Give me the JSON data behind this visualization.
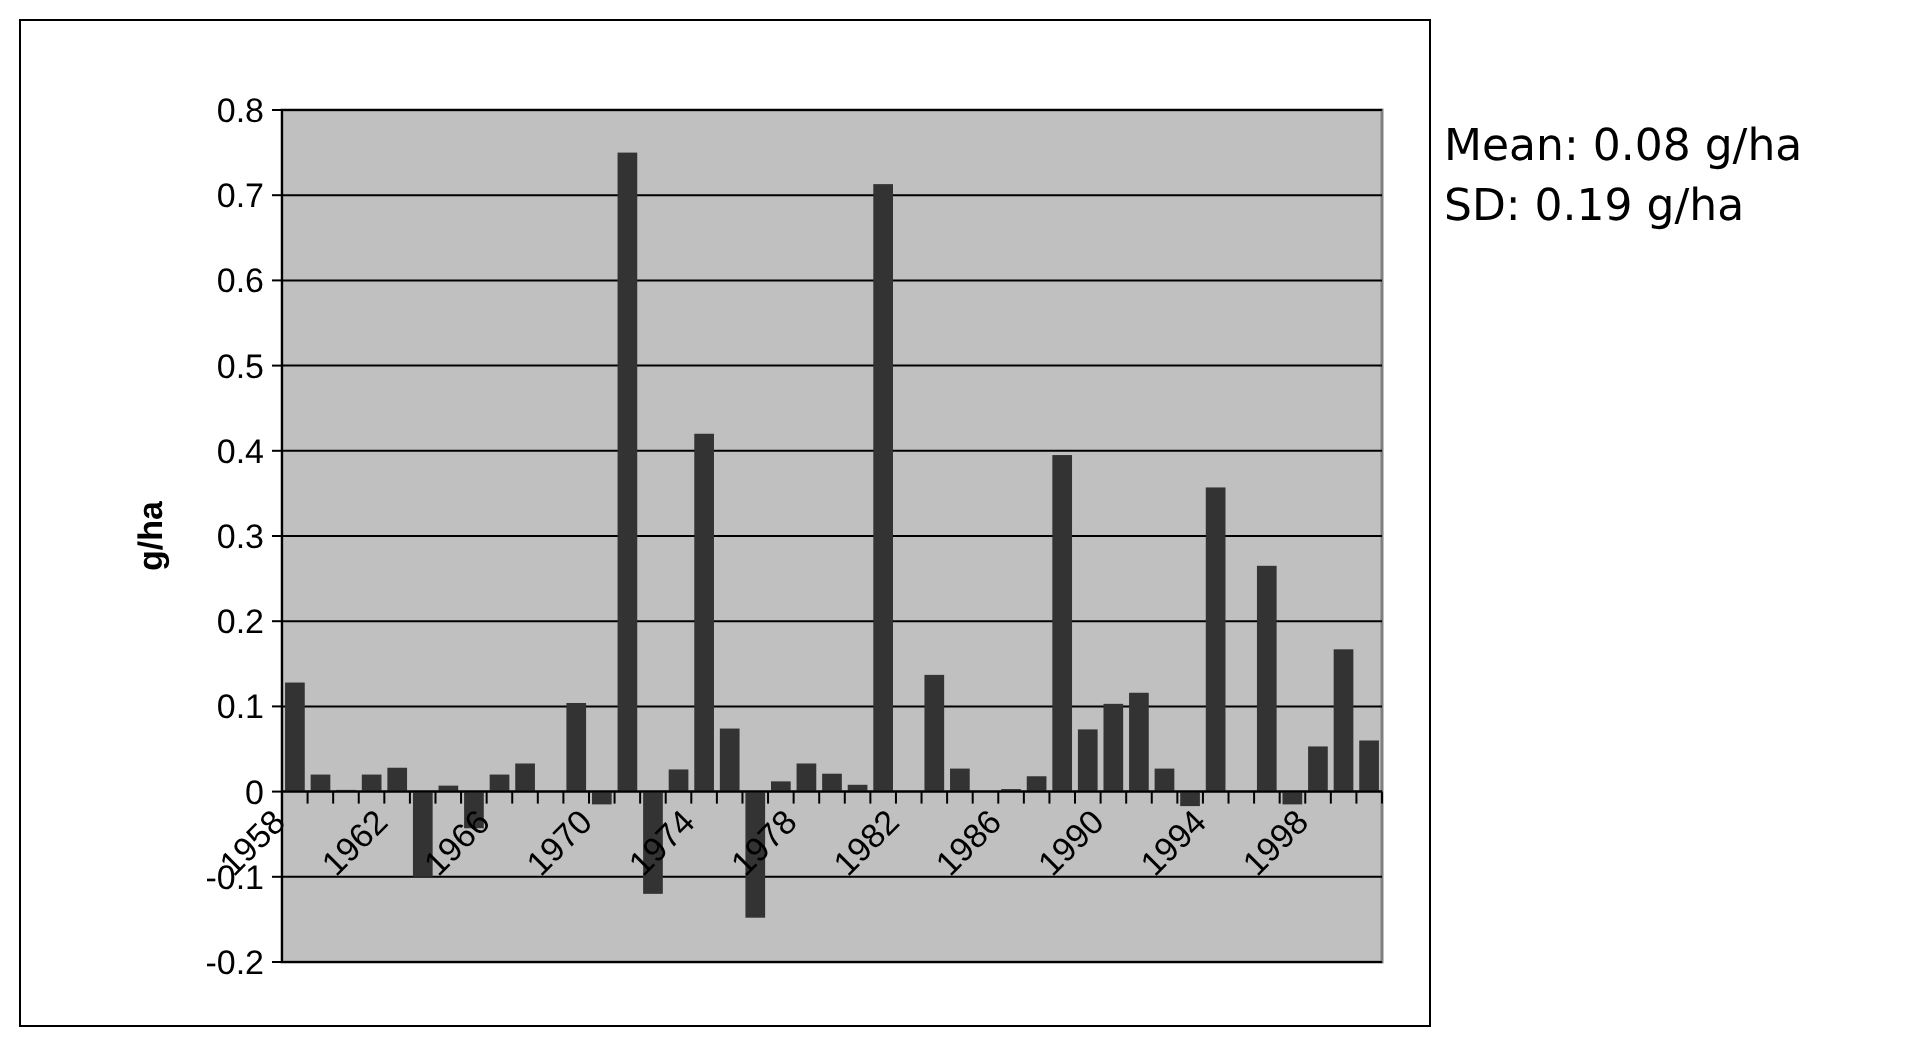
{
  "chart_data": {
    "type": "bar",
    "ylabel": "g/ha",
    "categories": [
      "1958",
      null,
      null,
      null,
      "1962",
      null,
      null,
      null,
      "1966",
      null,
      null,
      null,
      "1970",
      null,
      null,
      null,
      "1974",
      null,
      null,
      null,
      "1978",
      null,
      null,
      null,
      "1982",
      null,
      null,
      null,
      "1986",
      null,
      null,
      null,
      "1990",
      null,
      null,
      null,
      "1994",
      null,
      null,
      null,
      "1998",
      null,
      null
    ],
    "values": [
      0.128,
      0.02,
      0.002,
      0.02,
      0.028,
      -0.1,
      0.007,
      -0.043,
      0.02,
      0.033,
      0,
      0.104,
      -0.015,
      0.75,
      -0.12,
      0.026,
      0.42,
      0.074,
      -0.148,
      0.012,
      0.033,
      0.021,
      0.008,
      0.713,
      0,
      0.137,
      0.027,
      0,
      0.003,
      0.018,
      0.395,
      0.073,
      0.103,
      0.116,
      0.027,
      -0.017,
      0.357,
      0,
      0.265,
      -0.015,
      0.053,
      0.167,
      0.06
    ],
    "color": "#333333",
    "ylim": [
      -0.2,
      0.8
    ],
    "yticks": [
      -0.2,
      -0.1,
      0,
      0.1,
      0.2,
      0.3,
      0.4,
      0.5,
      0.6,
      0.7,
      0.8
    ],
    "grid": "y",
    "annotations": [
      "Mean: 0.08 g/ha",
      "SD: 0.19 g/ha"
    ]
  }
}
